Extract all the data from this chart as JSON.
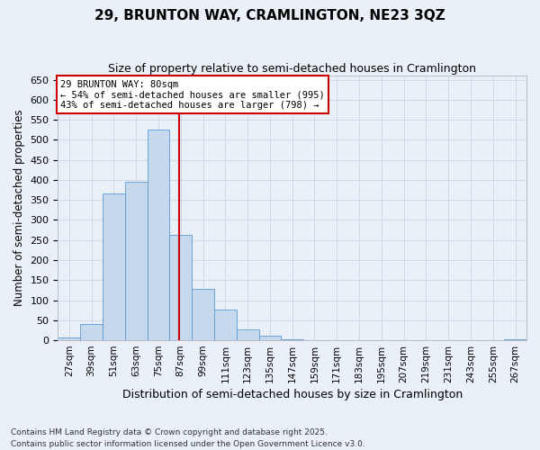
{
  "title": "29, BRUNTON WAY, CRAMLINGTON, NE23 3QZ",
  "subtitle": "Size of property relative to semi-detached houses in Cramlington",
  "xlabel": "Distribution of semi-detached houses by size in Cramlington",
  "ylabel": "Number of semi-detached properties",
  "categories": [
    "27sqm",
    "39sqm",
    "51sqm",
    "63sqm",
    "75sqm",
    "87sqm",
    "99sqm",
    "111sqm",
    "123sqm",
    "135sqm",
    "147sqm",
    "159sqm",
    "171sqm",
    "183sqm",
    "195sqm",
    "207sqm",
    "219sqm",
    "231sqm",
    "243sqm",
    "255sqm",
    "267sqm"
  ],
  "values": [
    8,
    40,
    367,
    395,
    525,
    263,
    128,
    76,
    27,
    11,
    3,
    1,
    0,
    0,
    0,
    0,
    0,
    0,
    0,
    0,
    3
  ],
  "bar_color": "#c5d8ec",
  "bar_edge_color": "#5b9bd5",
  "grid_color": "#d0d8e8",
  "background_color": "#eaf0f8",
  "vline_color": "#cc0000",
  "annotation_text": "29 BRUNTON WAY: 80sqm\n← 54% of semi-detached houses are smaller (995)\n43% of semi-detached houses are larger (798) →",
  "annotation_box_color": "white",
  "annotation_box_edge_color": "#cc0000",
  "ylim": [
    0,
    660
  ],
  "yticks": [
    0,
    50,
    100,
    150,
    200,
    250,
    300,
    350,
    400,
    450,
    500,
    550,
    600,
    650
  ],
  "footer": "Contains HM Land Registry data © Crown copyright and database right 2025.\nContains public sector information licensed under the Open Government Licence v3.0."
}
